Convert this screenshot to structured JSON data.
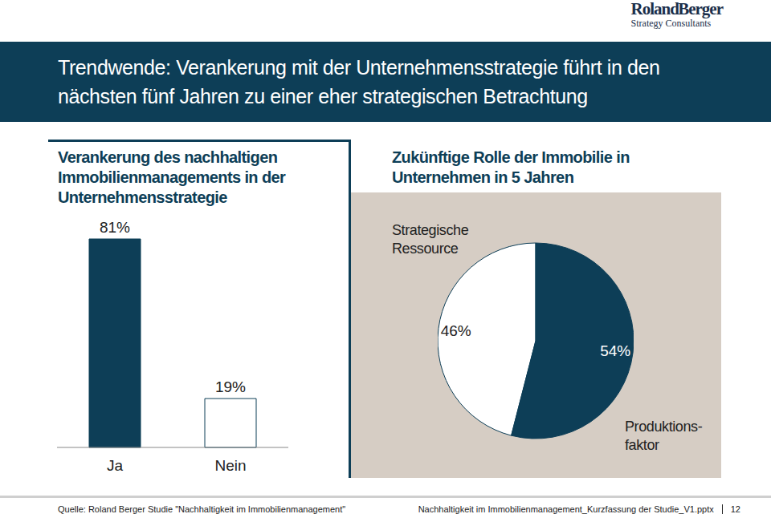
{
  "logo": {
    "name": "Roland Berger",
    "subtitle": "Strategy Consultants"
  },
  "title": "Trendwende: Verankerung mit der Unternehmensstrategie führt in den nächsten fünf Jahren zu einer eher strategischen Betrachtung",
  "chart_data": [
    {
      "type": "bar",
      "title": "Verankerung des nachhaltigen Immobilienmanagements in der Unternehmensstrategie",
      "categories": [
        "Ja",
        "Nein"
      ],
      "values": [
        81,
        19
      ],
      "value_labels": [
        "81%",
        "19%"
      ],
      "colors": [
        "#0d3e57",
        "#ffffff"
      ],
      "data_labels": true,
      "tick_labels": "x"
    },
    {
      "type": "pie",
      "title": "Zukünftige Rolle der Immobilie in Unternehmen in 5 Jahren",
      "categories": [
        "Strategische Ressource",
        "Produktions­faktor"
      ],
      "values": [
        46,
        54
      ],
      "value_labels": [
        "46%",
        "54%"
      ],
      "colors": [
        "#ffffff",
        "#0d3e57"
      ],
      "data_labels": true
    }
  ],
  "footer": {
    "source": "Quelle: Roland Berger Studie \"Nachhaltigkeit im Immobilienmanagement\"",
    "file": "Nachhaltigkeit im Immobilienmanagement_Kurzfassung der Studie_V1.pptx",
    "page": 12
  }
}
